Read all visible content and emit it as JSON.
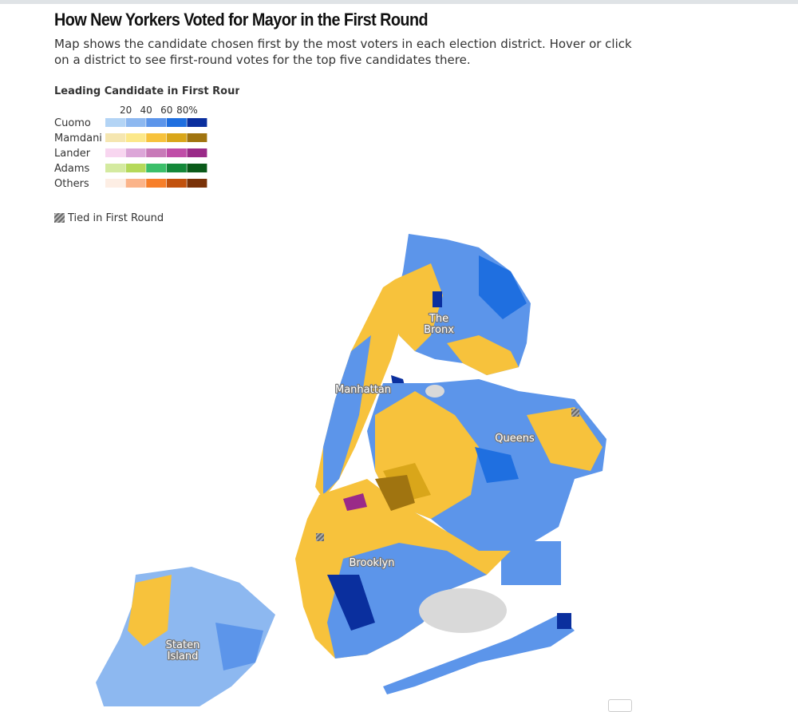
{
  "header": {
    "title": "How New Yorkers Voted for Mayor in the First Round",
    "description": "Map shows the candidate chosen first by the most voters in each election district. Hover or click on a district to see first-round votes for the top five candidates there."
  },
  "legend": {
    "title": "Leading Candidate in First Round",
    "scale": [
      "20",
      "40",
      "60",
      "80%"
    ],
    "rows": [
      {
        "name": "Cuomo",
        "colors": [
          "#b3d4f5",
          "#8db8f0",
          "#5c95ea",
          "#1f6fe0",
          "#0a2f9e"
        ]
      },
      {
        "name": "Mamdani",
        "colors": [
          "#f5e6b0",
          "#fce88a",
          "#f7c23c",
          "#d9a61a",
          "#a07410"
        ]
      },
      {
        "name": "Lander",
        "colors": [
          "#f8d6f0",
          "#dca6d8",
          "#c87ab8",
          "#c04da8",
          "#9a2a88"
        ]
      },
      {
        "name": "Adams",
        "colors": [
          "#d4eaa0",
          "#b5d95a",
          "#3cbf6a",
          "#14883a",
          "#0a5a1a"
        ]
      },
      {
        "name": "Others",
        "colors": [
          "#fdeee4",
          "#fbb48a",
          "#f77f2a",
          "#c2520e",
          "#7a3208"
        ]
      }
    ],
    "tied": "Tied in First Round"
  },
  "map": {
    "labels": [
      {
        "lines": [
          "The",
          "Bronx"
        ]
      },
      {
        "lines": [
          "Manhattan"
        ]
      },
      {
        "lines": [
          "Queens"
        ]
      },
      {
        "lines": [
          "Brooklyn"
        ]
      },
      {
        "lines": [
          "Staten",
          "Island"
        ]
      }
    ]
  }
}
